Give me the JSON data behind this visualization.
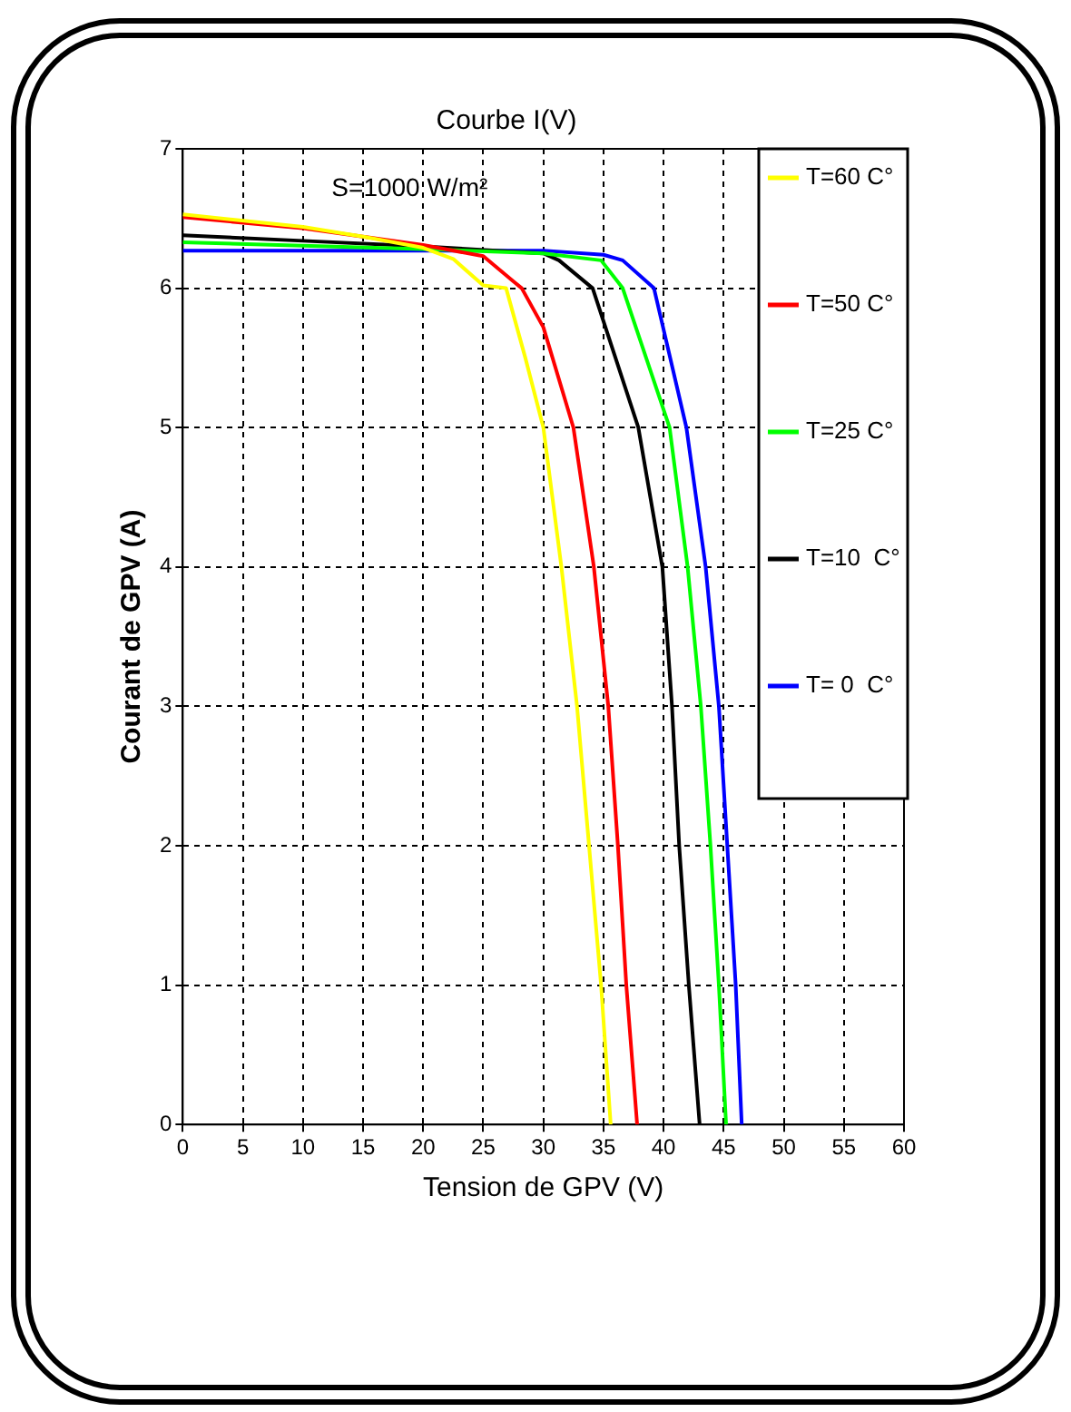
{
  "chart_data": {
    "type": "line",
    "title": "Courbe I(V)",
    "xlabel": "Tension de GPV (V)",
    "ylabel": "Courant de GPV (A)",
    "annotations": [
      "S=1000 W/m²"
    ],
    "xlim": [
      0,
      60
    ],
    "ylim": [
      0,
      7
    ],
    "xticks": [
      0,
      5,
      10,
      15,
      20,
      25,
      30,
      35,
      40,
      45,
      50,
      55,
      60
    ],
    "yticks": [
      0,
      1,
      2,
      3,
      4,
      5,
      6,
      7
    ],
    "grid": true,
    "legend": "top right",
    "marker": "none",
    "line_style": "solid",
    "series": [
      {
        "name": "T=60 C°",
        "color": "#ffff00",
        "x": [
          0,
          10,
          15,
          20,
          22.5,
          25,
          26.9,
          28.5,
          30,
          31.5,
          32.8,
          33.8,
          34.8,
          35.6
        ],
        "values": [
          6.53,
          6.44,
          6.37,
          6.29,
          6.21,
          6.02,
          6,
          5.5,
          5,
          4,
          3,
          2,
          1,
          0
        ]
      },
      {
        "name": "T=50 C°",
        "color": "#ff0000",
        "x": [
          0,
          10,
          20,
          25,
          27.5,
          28.2,
          30,
          32.5,
          34.2,
          35.4,
          36.2,
          36.9,
          37.8
        ],
        "values": [
          6.51,
          6.43,
          6.31,
          6.23,
          6.05,
          6,
          5.72,
          5,
          4,
          3,
          2,
          1,
          0
        ]
      },
      {
        "name": "T=25 C°",
        "color": "#00ff00",
        "x": [
          0,
          20,
          30,
          34.8,
          36.6,
          40.5,
          42,
          43.1,
          43.9,
          44.6,
          45.2
        ],
        "values": [
          6.33,
          6.28,
          6.25,
          6.2,
          6,
          5,
          4,
          3,
          2,
          1,
          0
        ]
      },
      {
        "name": "T=10  C°",
        "color": "#000000",
        "x": [
          0,
          10,
          20,
          30,
          31.3,
          34.1,
          37.9,
          39.9,
          40.7,
          41.3,
          42.1,
          43
        ],
        "values": [
          6.38,
          6.34,
          6.3,
          6.25,
          6.2,
          6,
          5,
          4,
          3,
          2,
          1,
          0
        ]
      },
      {
        "name": "T= 0  C°",
        "color": "#0000ff",
        "x": [
          0,
          30,
          35,
          36.6,
          39.2,
          41.9,
          43.5,
          44.6,
          45.3,
          46,
          46.5
        ],
        "values": [
          6.27,
          6.27,
          6.24,
          6.2,
          6,
          5,
          4,
          3,
          2,
          1,
          0
        ]
      }
    ]
  }
}
